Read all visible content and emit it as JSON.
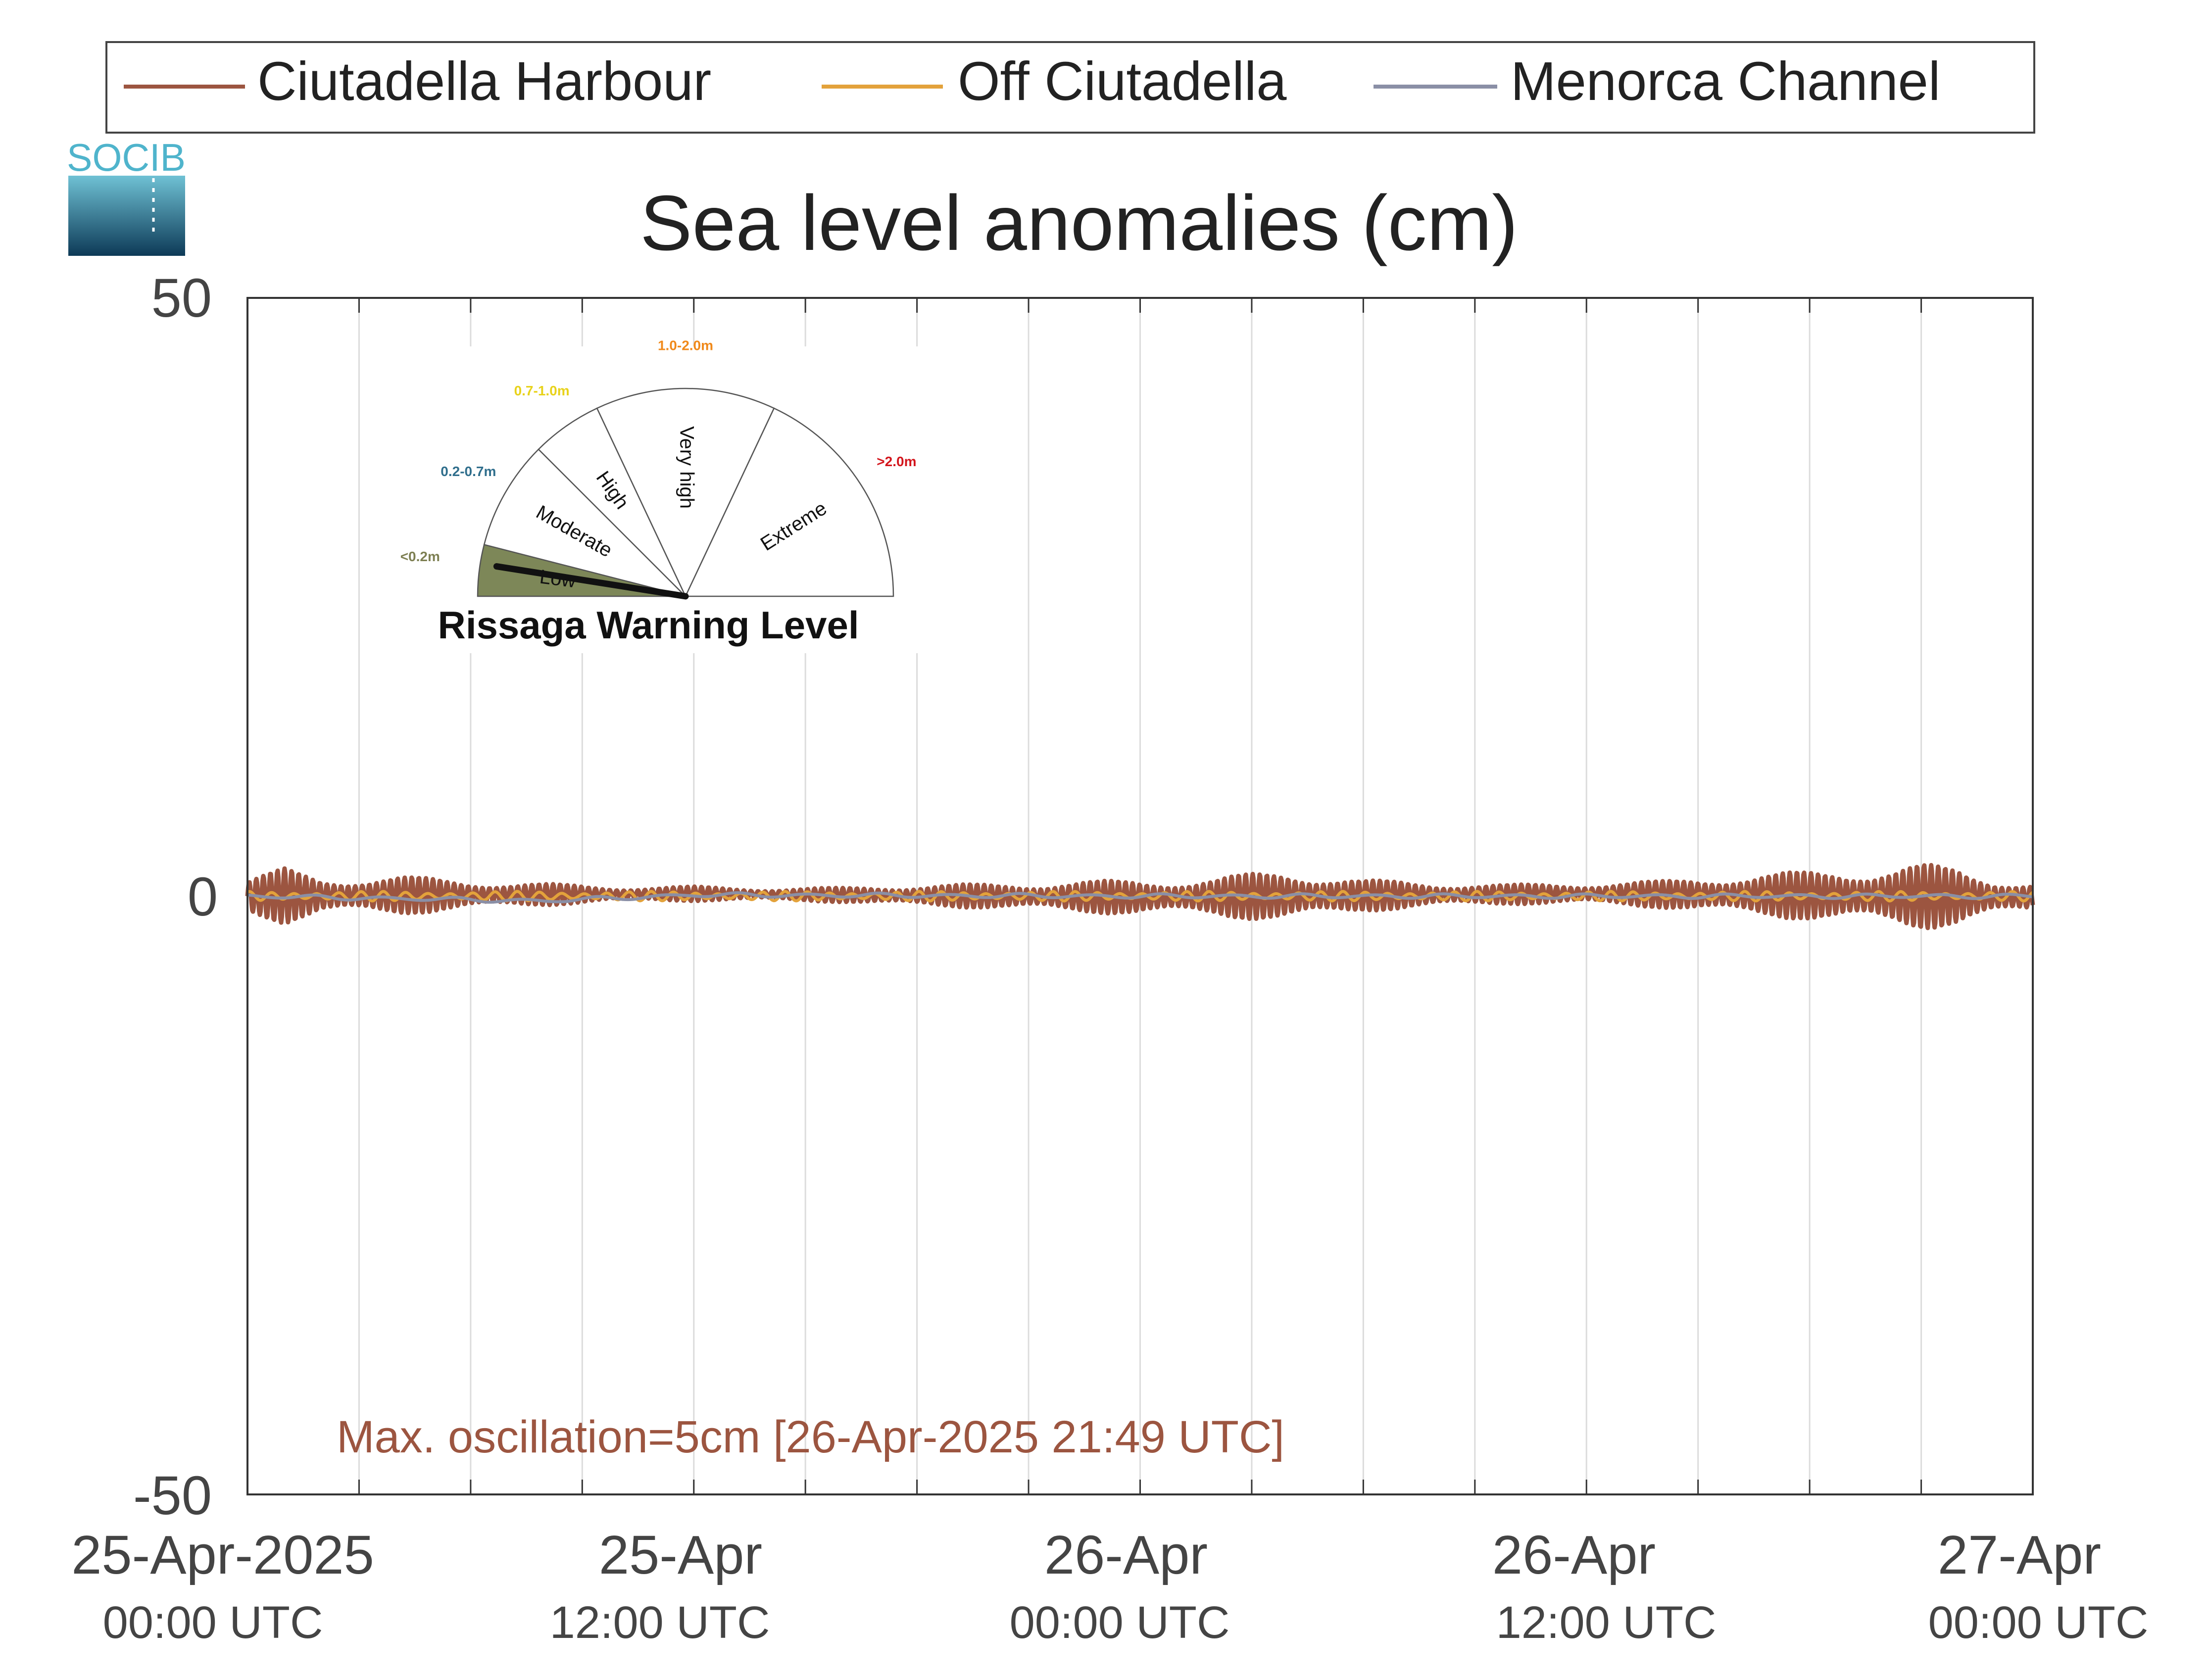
{
  "chart_data": {
    "type": "line",
    "title": "Sea level anomalies (cm)",
    "xlabel": "",
    "ylabel": "",
    "ylim": [
      -50,
      50
    ],
    "yticks": [
      50,
      0,
      -50
    ],
    "x_range_hours": [
      0,
      48
    ],
    "x_ticks": [
      {
        "hour": 0,
        "date": "25-Apr-2025",
        "time": "00:00 UTC"
      },
      {
        "hour": 12,
        "date": "25-Apr",
        "time": "12:00 UTC"
      },
      {
        "hour": 24,
        "date": "26-Apr",
        "time": "00:00 UTC"
      },
      {
        "hour": 36,
        "date": "26-Apr",
        "time": "12:00 UTC"
      },
      {
        "hour": 48,
        "date": "27-Apr",
        "time": "00:00 UTC"
      }
    ],
    "minor_gridline_hours": [
      3,
      6,
      9,
      12,
      15,
      18,
      21,
      24,
      27,
      30,
      33,
      36,
      39,
      42,
      45
    ],
    "grid": true,
    "legend_position": "top",
    "series": [
      {
        "name": "Ciutadella Harbour",
        "color": "#9c5540",
        "amplitude_envelope_cm": [
          [
            0,
            1.5
          ],
          [
            1,
            2.3
          ],
          [
            2,
            1.5
          ],
          [
            4,
            1.6
          ],
          [
            6,
            1.2
          ],
          [
            8,
            0.9
          ],
          [
            10,
            0.6
          ],
          [
            12,
            0.6
          ],
          [
            14,
            0.5
          ],
          [
            16,
            0.6
          ],
          [
            18,
            0.9
          ],
          [
            20,
            1.0
          ],
          [
            22,
            1.3
          ],
          [
            24,
            1.4
          ],
          [
            26,
            1.6
          ],
          [
            28,
            2.2
          ],
          [
            30,
            1.3
          ],
          [
            32,
            1.0
          ],
          [
            34,
            0.8
          ],
          [
            36,
            0.9
          ],
          [
            38,
            1.1
          ],
          [
            40,
            1.7
          ],
          [
            42,
            2.0
          ],
          [
            43,
            2.3
          ],
          [
            44,
            2.5
          ],
          [
            45,
            2.7
          ],
          [
            46,
            2.4
          ],
          [
            47,
            1.6
          ],
          [
            48,
            1.2
          ]
        ],
        "mean_cm": [
          [
            0,
            0.0
          ],
          [
            12,
            0.2
          ],
          [
            24,
            -0.1
          ],
          [
            36,
            0.2
          ],
          [
            48,
            -0.1
          ]
        ]
      },
      {
        "name": "Off Ciutadella",
        "color": "#e3a23b",
        "amplitude_envelope_cm": [
          [
            0,
            0.4
          ],
          [
            24,
            0.4
          ],
          [
            48,
            0.4
          ]
        ],
        "mean_cm": [
          [
            0,
            0.0
          ],
          [
            48,
            0.0
          ]
        ]
      },
      {
        "name": "Menorca Channel",
        "color": "#8a8fa6",
        "amplitude_envelope_cm": [
          [
            0,
            0.2
          ],
          [
            48,
            0.2
          ]
        ],
        "mean_cm": [
          [
            0,
            0.0
          ],
          [
            8,
            -0.4
          ],
          [
            12,
            0.1
          ],
          [
            24,
            0.0
          ],
          [
            48,
            0.0
          ]
        ]
      }
    ],
    "annotation": "Max. oscillation=5cm [26-Apr-2025 21:49 UTC]",
    "annotation_color": "#9c5540"
  },
  "logo": {
    "text": "SOCIB"
  },
  "gauge": {
    "title": "Rissaga Warning Level",
    "current_level": "Low",
    "current_fraction": 0.05,
    "segments": [
      {
        "label": "Low",
        "range": "<0.2m",
        "range_color": "#7d7f52",
        "fill": "#7d8758"
      },
      {
        "label": "Moderate",
        "range": "0.2-0.7m",
        "range_color": "#2f6e8c",
        "fill": "#ffffff"
      },
      {
        "label": "High",
        "range": "0.7-1.0m",
        "range_color": "#e8d21a",
        "fill": "#ffffff"
      },
      {
        "label": "Very high",
        "range": "1.0-2.0m",
        "range_color": "#f0891a",
        "fill": "#ffffff"
      },
      {
        "label": "Extreme",
        "range": ">2.0m",
        "range_color": "#d3151c",
        "fill": "#ffffff"
      }
    ]
  }
}
